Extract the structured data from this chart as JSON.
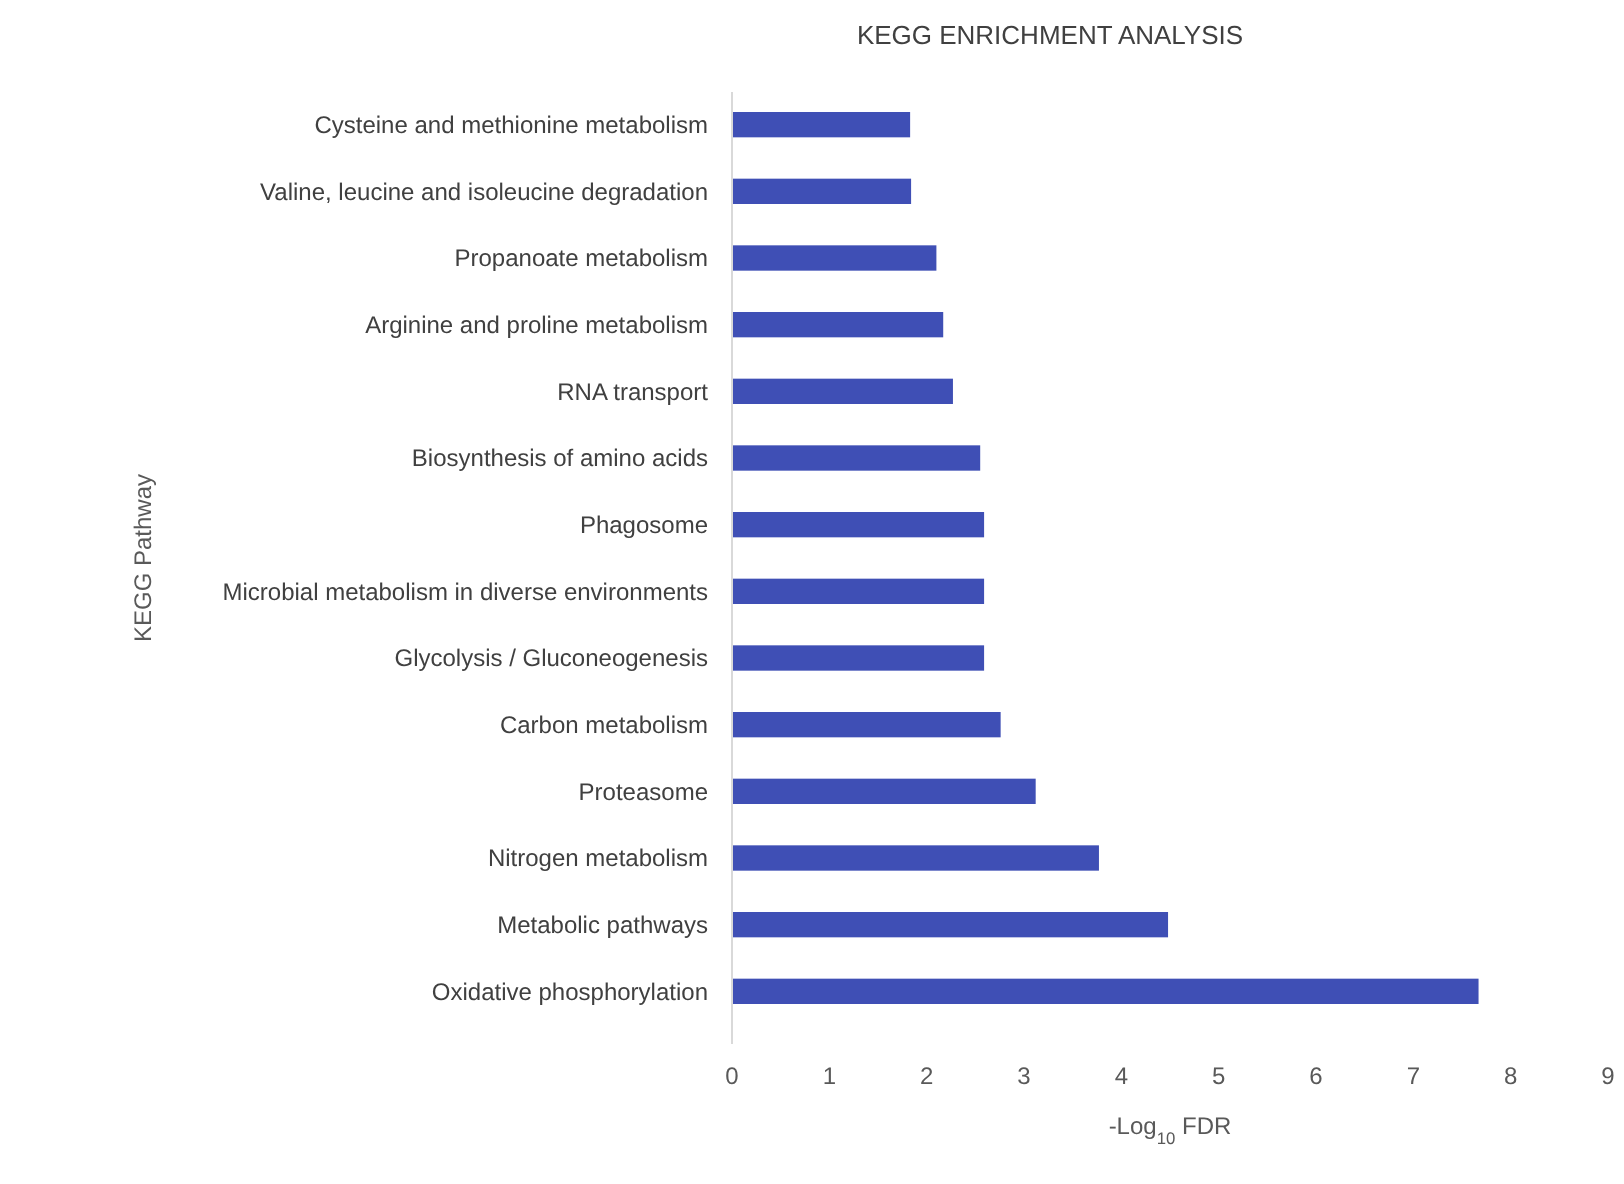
{
  "chart_data": {
    "type": "bar",
    "orientation": "horizontal",
    "title": "KEGG ENRICHMENT ANALYSIS",
    "xlabel": "-Log$_{10}$ FDR",
    "ylabel": "KEGG Pathway",
    "categories": [
      "Cysteine and methionine metabolism",
      "Valine, leucine and isoleucine degradation",
      "Propanoate metabolism",
      "Arginine and proline metabolism",
      "RNA transport",
      "Biosynthesis of amino acids",
      "Phagosome",
      "Microbial metabolism in diverse environments",
      "Glycolysis / Gluconeogenesis",
      "Carbon metabolism",
      "Proteasome",
      "Nitrogen metabolism",
      "Metabolic pathways",
      "Oxidative phosphorylation"
    ],
    "values": [
      1.83,
      1.84,
      2.1,
      2.17,
      2.27,
      2.55,
      2.59,
      2.59,
      2.59,
      2.76,
      3.12,
      3.77,
      4.48,
      7.67
    ],
    "color": "#3f4fb5",
    "xlim": [
      0,
      9
    ],
    "xticks": [
      0,
      1,
      2,
      3,
      4,
      5,
      6,
      7,
      8,
      9
    ],
    "grid": false
  }
}
